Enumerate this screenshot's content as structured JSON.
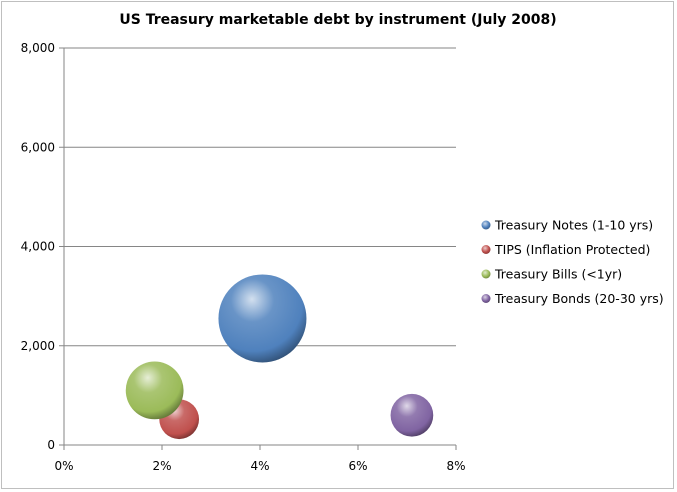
{
  "chart_data": {
    "type": "bubble",
    "title": "US Treasury marketable debt by instrument (July 2008)",
    "xlabel": "",
    "ylabel": "",
    "x_ticks": [
      "0%",
      "2%",
      "4%",
      "6%",
      "8%"
    ],
    "y_ticks": [
      "0",
      "2,000",
      "4,000",
      "6,000",
      "8,000"
    ],
    "xlim": [
      0,
      8
    ],
    "ylim": [
      0,
      8000
    ],
    "grid": "horizontal",
    "legend_position": "right",
    "series": [
      {
        "name": "Treasury Notes (1-10 yrs)",
        "x": 4.05,
        "y": 2550,
        "size": 2550,
        "color": "#4f81bd"
      },
      {
        "name": "TIPS (Inflation Protected)",
        "x": 2.35,
        "y": 520,
        "size": 520,
        "color": "#c0504d"
      },
      {
        "name": "Treasury Bills (<1yr)",
        "x": 1.85,
        "y": 1100,
        "size": 1100,
        "color": "#9bbb59"
      },
      {
        "name": "Treasury Bonds (20-30 yrs)",
        "x": 7.1,
        "y": 600,
        "size": 600,
        "color": "#8064a2"
      }
    ]
  }
}
